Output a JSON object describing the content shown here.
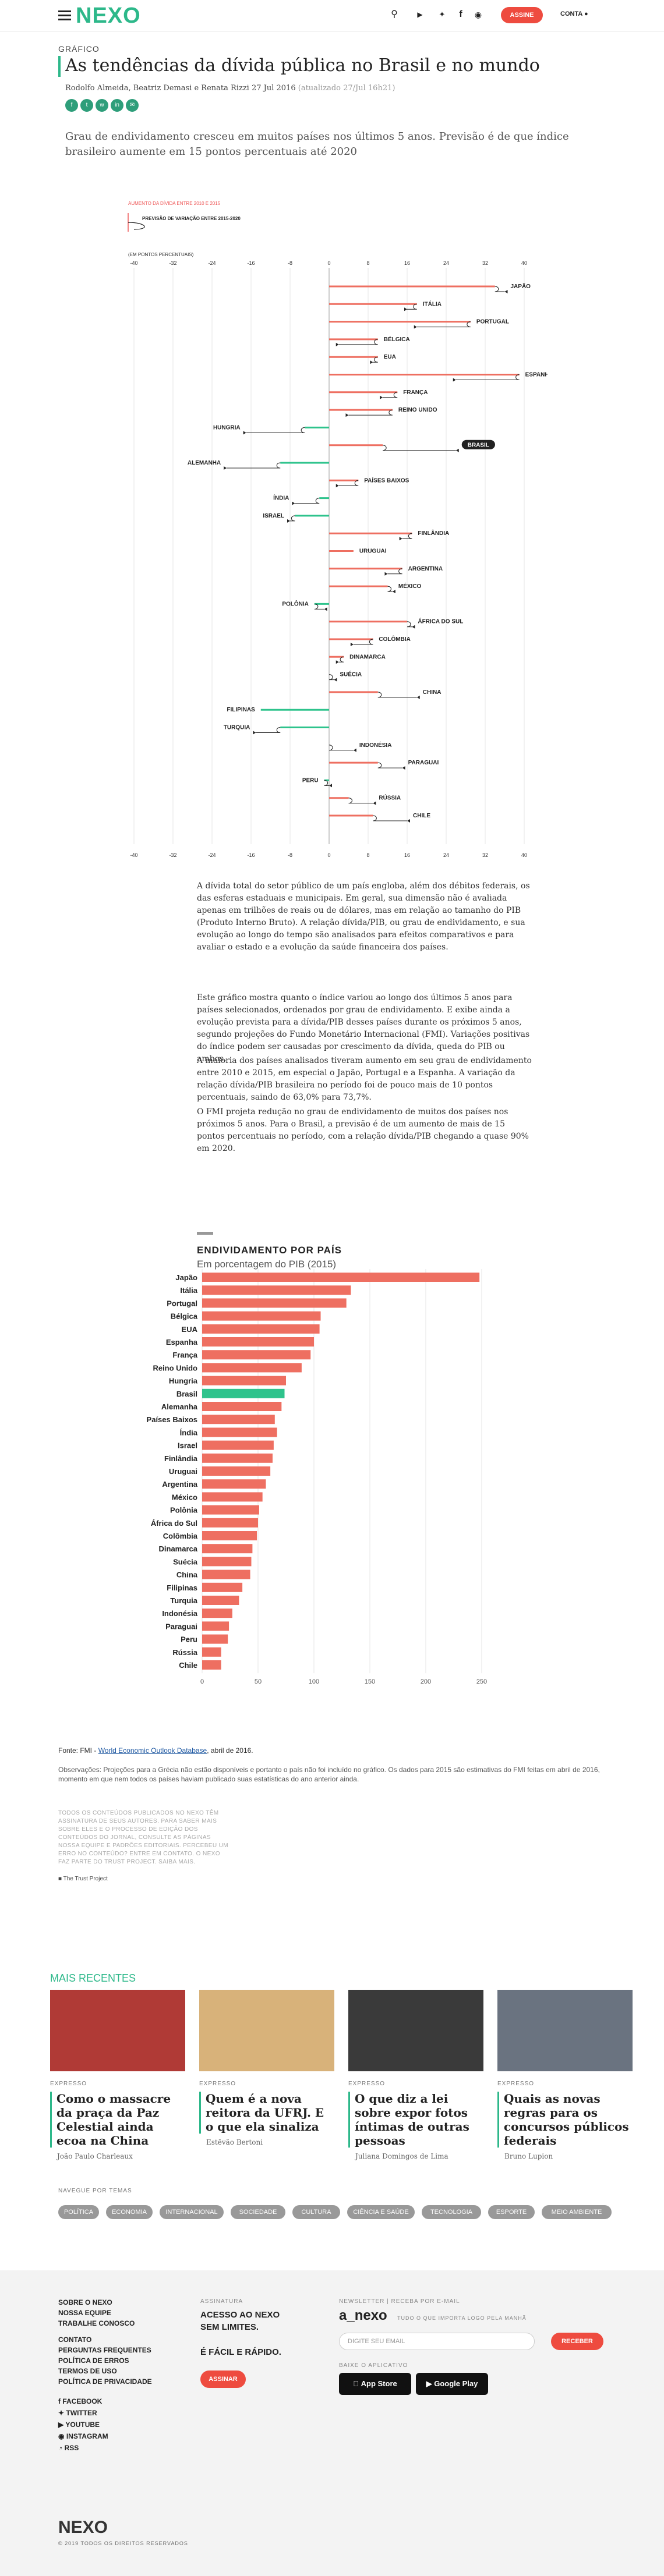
{
  "header": {
    "logo": "NEXO",
    "subscribe_label": "ASSINE",
    "account_label": "CONTA",
    "icons": [
      "search-icon",
      "youtube-icon",
      "twitter-icon",
      "facebook-icon",
      "instagram-icon"
    ]
  },
  "article": {
    "kicker": "GRÁFICO",
    "title": "As tendências da dívida pública no Brasil e no mundo",
    "byline": "Rodolfo Almeida, Beatriz Demasi e Renata Rizzi",
    "date": "27 Jul 2016",
    "updated": "(atualizado 27/Jul 16h21)",
    "social": [
      "f",
      "t",
      "w",
      "in",
      "✉"
    ],
    "lead": "Grau de endividamento cresceu em muitos países nos últimos 5 anos. Previsão é de que índice brasileiro aumente em 15 pontos percentuais até 2020",
    "paragraphs": [
      "A dívida total do setor público de um país engloba, além dos débitos federais, os das esferas estaduais e municipais. Em geral, sua dimensão não é avaliada apenas em trilhões de reais ou de dólares, mas em relação ao tamanho do PIB (Produto Interno Bruto). A relação dívida/PIB, ou grau de endividamento, e sua evolução ao longo do tempo são analisados para efeitos comparativos e para avaliar o estado e a evolução da saúde financeira dos países.",
      "Este gráfico mostra quanto o índice variou ao longo dos últimos 5 anos para países selecionados, ordenados por grau de endividamento. E exibe ainda a evolução prevista para a dívida/PIB desses países durante os próximos 5 anos, segundo projeções do Fundo Monetário Internacional (FMI). Variações positivas do índice podem ser causadas por crescimento da dívida, queda do PIB ou ambos.",
      "A maioria dos países analisados tiveram aumento em seu grau de endividamento entre 2010 e 2015, em especial o Japão, Portugal e a Espanha. A variação da relação dívida/PIB brasileira no período foi de pouco mais de 10 pontos percentuais, saindo de 63,0% para 73,7%.",
      "O FMI projeta redução no grau de endividamento de muitos dos países nos próximos 5 anos. Para o Brasil, a previsão é de um aumento de mais de 15 pontos percentuais no período, com a relação dívida/PIB chegando a quase 90% em 2020."
    ],
    "source_prefix": "Fonte: FMI - ",
    "source_link": "World Economic Outlook Database",
    "source_suffix": ", abril de 2016.",
    "notes": "Observações: Projeções para a Grécia não estão disponíveis e portanto o país não foi incluído no gráfico. Os dados para 2015 são estimativas do FMI feitas em abril de 2016, momento em que nem todos os países haviam publicado suas estatísticas do ano anterior ainda.",
    "trust_text": "TODOS OS CONTEÚDOS PUBLICADOS NO NEXO TÊM ASSINATURA DE SEUS AUTORES. PARA SABER MAIS SOBRE ELES E O PROCESSO DE EDIÇÃO DOS CONTEÚDOS DO JORNAL, CONSULTE AS PÁGINAS NOSSA EQUIPE E PADRÕES EDITORIAIS. PERCEBEU UM ERRO NO CONTEÚDO? ENTRE EM CONTATO. O NEXO FAZ PARTE DO TRUST PROJECT. SAIBA MAIS.",
    "trust_logo": "The Trust Project"
  },
  "chart_data": [
    {
      "type": "arrow",
      "legend_change": "AUMENTO DA DÍVIDA ENTRE 2010 E 2015",
      "legend_projection": "PREVISÃO DE VARIAÇÃO ENTRE 2015-2020",
      "unit_label": "(EM PONTOS PERCENTUAIS)",
      "xlim": [
        -40,
        40
      ],
      "xticks": [
        -40,
        -32,
        -24,
        -16,
        -8,
        0,
        8,
        16,
        24,
        32,
        40
      ],
      "countries": [
        {
          "name": "JAPÃO",
          "change": 34,
          "projection": 2
        },
        {
          "name": "ITÁLIA",
          "change": 18,
          "projection": -2
        },
        {
          "name": "PORTUGAL",
          "change": 29,
          "projection": -11
        },
        {
          "name": "BÉLGICA",
          "change": 10,
          "projection": -8
        },
        {
          "name": "EUA",
          "change": 10,
          "projection": -1
        },
        {
          "name": "ESPANHA",
          "change": 39,
          "projection": -13
        },
        {
          "name": "FRANÇA",
          "change": 14,
          "projection": -3
        },
        {
          "name": "REINO UNIDO",
          "change": 13,
          "projection": -9
        },
        {
          "name": "HUNGRIA",
          "change": -5,
          "projection": -12
        },
        {
          "name": "BRASIL",
          "change": 11,
          "projection": 15
        },
        {
          "name": "ALEMANHA",
          "change": -10,
          "projection": -11
        },
        {
          "name": "PAÍSES BAIXOS",
          "change": 6,
          "projection": -4
        },
        {
          "name": "ÍNDIA",
          "change": -2,
          "projection": -5
        },
        {
          "name": "ISRAEL",
          "change": -7,
          "projection": -1
        },
        {
          "name": "FINLÂNDIA",
          "change": 17,
          "projection": -2
        },
        {
          "name": "URUGUAI",
          "change": 5,
          "projection": 0
        },
        {
          "name": "ARGENTINA",
          "change": 15,
          "projection": -3
        },
        {
          "name": "MÉXICO",
          "change": 12,
          "projection": 1
        },
        {
          "name": "POLÔNIA",
          "change": -3,
          "projection": 2
        },
        {
          "name": "ÁFRICA DO SUL",
          "change": 16,
          "projection": 1
        },
        {
          "name": "COLÔMBIA",
          "change": 9,
          "projection": -4
        },
        {
          "name": "DINAMARCA",
          "change": 3,
          "projection": -1
        },
        {
          "name": "SUÉCIA",
          "change": 0,
          "projection": 1
        },
        {
          "name": "CHINA",
          "change": 10,
          "projection": 8
        },
        {
          "name": "FILIPINAS",
          "change": -14,
          "projection": 0
        },
        {
          "name": "TURQUIA",
          "change": -10,
          "projection": -5
        },
        {
          "name": "INDONÉSIA",
          "change": 0,
          "projection": 5
        },
        {
          "name": "PARAGUAI",
          "change": 10,
          "projection": 5
        },
        {
          "name": "PERU",
          "change": -1,
          "projection": 1
        },
        {
          "name": "RÚSSIA",
          "change": 4,
          "projection": 5
        },
        {
          "name": "CHILE",
          "change": 9,
          "projection": 7
        }
      ]
    },
    {
      "type": "bar",
      "title": "ENDIVIDAMENTO POR PAÍS",
      "subtitle": "Em porcentagem do PIB (2015)",
      "xlim": [
        0,
        250
      ],
      "xticks": [
        0,
        50,
        100,
        150,
        200,
        250
      ],
      "highlight": "Brasil",
      "colors": {
        "bar": "#ee6f61",
        "highlight": "#2ec38c"
      },
      "categories": [
        "Japão",
        "Itália",
        "Portugal",
        "Bélgica",
        "EUA",
        "Espanha",
        "França",
        "Reino Unido",
        "Hungria",
        "Brasil",
        "Alemanha",
        "Países Baixos",
        "Índia",
        "Israel",
        "Finlândia",
        "Uruguai",
        "Argentina",
        "México",
        "Polônia",
        "África do Sul",
        "Colômbia",
        "Dinamarca",
        "Suécia",
        "China",
        "Filipinas",
        "Turquia",
        "Indonésia",
        "Paraguai",
        "Peru",
        "Rússia",
        "Chile"
      ],
      "values": [
        248,
        133,
        129,
        106,
        105,
        100,
        97,
        89,
        75,
        73.7,
        71,
        65,
        67,
        64,
        63,
        61,
        57,
        54,
        51,
        50,
        49,
        45,
        44,
        43,
        36,
        33,
        27,
        24,
        23,
        17,
        17
      ]
    }
  ],
  "recent": {
    "heading": "MAIS RECENTES",
    "cards": [
      {
        "tag": "EXPRESSO",
        "title": "Como o massacre da praça da Paz Celestial ainda ecoa na China",
        "author": "João Paulo Charleaux",
        "img": "#b03a36"
      },
      {
        "tag": "EXPRESSO",
        "title": "Quem é a nova reitora da UFRJ. E o que ela sinaliza",
        "author": "Estêvão Bertoni",
        "img": "#d8b27a"
      },
      {
        "tag": "EXPRESSO",
        "title": "O que diz a lei sobre expor fotos íntimas de outras pessoas",
        "author": "Juliana Domingos de Lima",
        "img": "#3a3a3a"
      },
      {
        "tag": "EXPRESSO",
        "title": "Quais as novas regras para os concursos públicos federais",
        "author": "Bruno Lupion",
        "img": "#6a7380"
      }
    ]
  },
  "topics": {
    "heading": "NAVEGUE POR TEMAS",
    "items": [
      "POLÍTICA",
      "ECONOMIA",
      "INTERNACIONAL",
      "SOCIEDADE",
      "CULTURA",
      "CIÊNCIA E SAÚDE",
      "TECNOLOGIA",
      "ESPORTE",
      "MEIO AMBIENTE"
    ]
  },
  "footer": {
    "links": [
      "SOBRE O NEXO",
      "NOSSA EQUIPE",
      "TRABALHE CONOSCO",
      "CONTATO",
      "PERGUNTAS FREQUENTES",
      "POLÍTICA DE ERROS",
      "TERMOS DE USO",
      "POLÍTICA DE PRIVACIDADE"
    ],
    "social": [
      "FACEBOOK",
      "TWITTER",
      "YOUTUBE",
      "INSTAGRAM",
      "RSS"
    ],
    "sub_heading": "ASSINATURA",
    "sub_line1": "ACESSO AO NEXO",
    "sub_line2": "SEM LIMITES.",
    "sub_line3": "É FÁCIL E RÁPIDO.",
    "sub_button": "ASSINAR",
    "news_heading": "NEWSLETTER | RECEBA POR E-MAIL",
    "news_brand": "a_nexo",
    "news_tagline": "TUDO O QUE IMPORTA LOGO PELA MANHÃ",
    "email_placeholder": "DIGITE SEU EMAIL",
    "receive_button": "RECEBER",
    "app_heading": "BAIXE O APLICATIVO",
    "app_store": "App Store",
    "google_play": "Google Play",
    "logo": "NEXO",
    "copyright": "© 2019 TODOS OS DIREITOS RESERVADOS"
  }
}
